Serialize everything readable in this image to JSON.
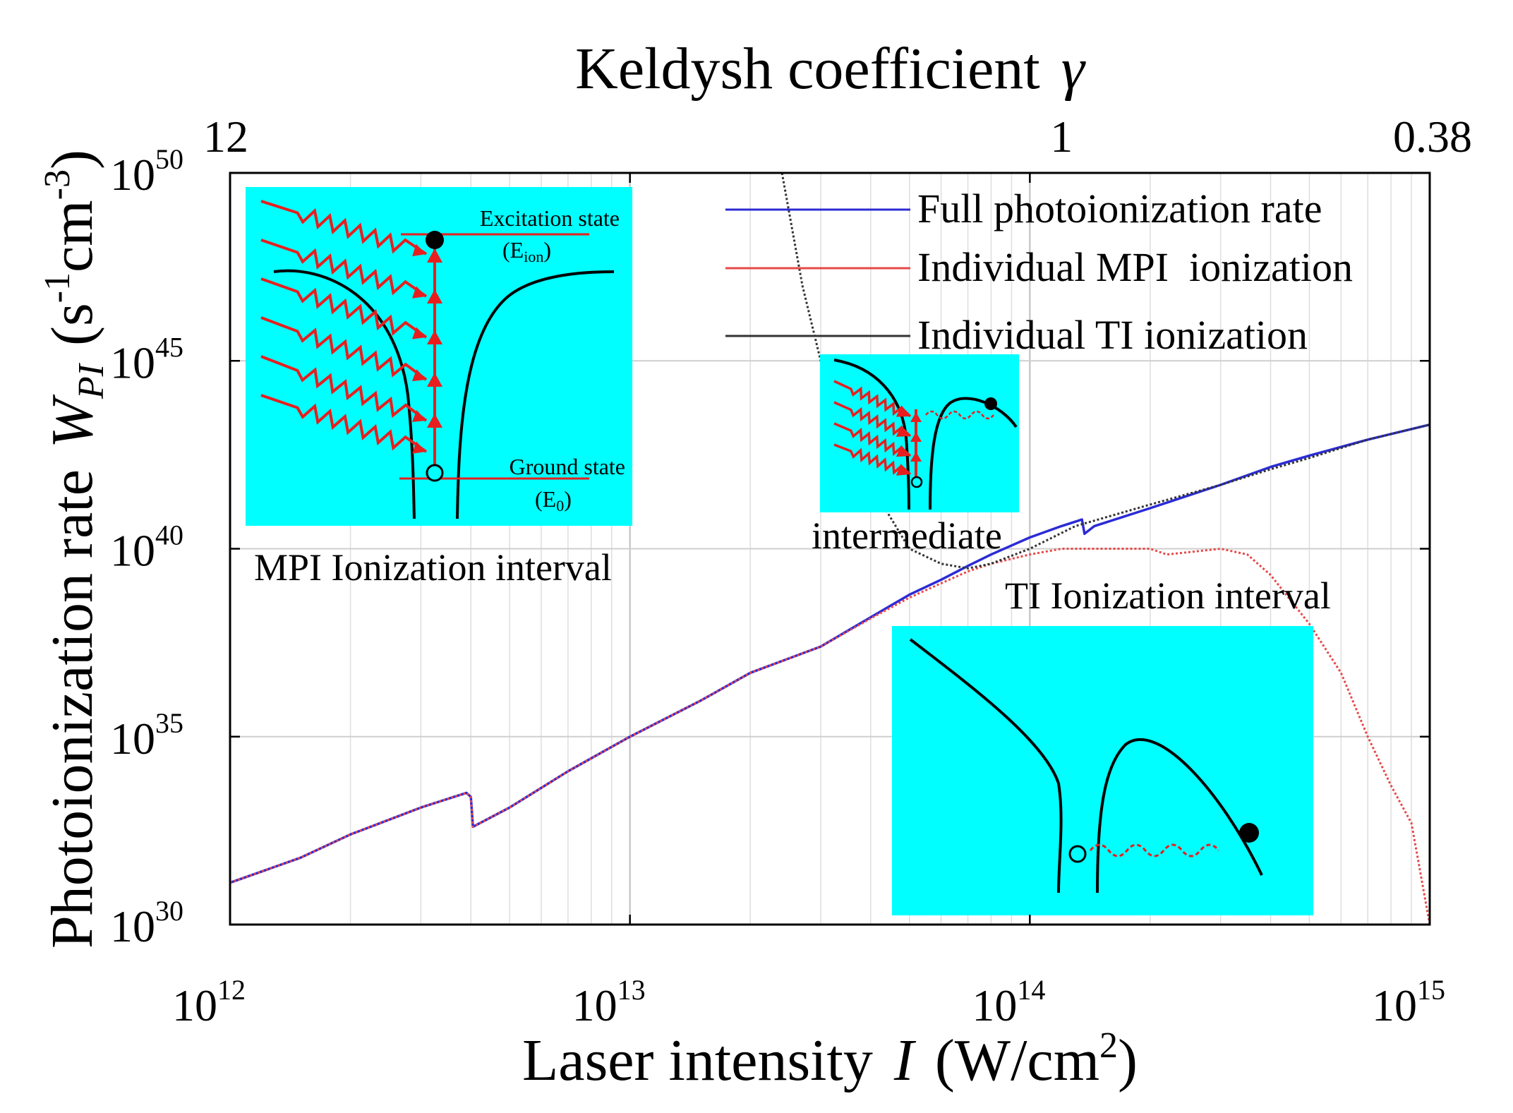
{
  "chart_data": {
    "type": "line",
    "xscale": "log",
    "yscale": "log",
    "xlim": [
      1000000000000.0,
      1000000000000000.0
    ],
    "ylim": [
      1e+30,
      1e+50
    ],
    "x_ticks": [
      {
        "base": "10",
        "exp": "12"
      },
      {
        "base": "10",
        "exp": "13"
      },
      {
        "base": "10",
        "exp": "14"
      },
      {
        "base": "10",
        "exp": "15"
      }
    ],
    "y_ticks": [
      {
        "base": "10",
        "exp": "30"
      },
      {
        "base": "10",
        "exp": "35"
      },
      {
        "base": "10",
        "exp": "40"
      },
      {
        "base": "10",
        "exp": "45"
      },
      {
        "base": "10",
        "exp": "50"
      }
    ],
    "top_axis": {
      "title": "Keldysh coefficient",
      "symbol": "γ",
      "ticks": [
        {
          "label": "12",
          "at_intensity": 1000000000000.0
        },
        {
          "label": "1",
          "at_intensity": 120000000000000.0
        },
        {
          "label": "0.38",
          "at_intensity": 1000000000000000.0
        }
      ]
    },
    "xlabel": {
      "text": "Laser intensity",
      "symbol": "I",
      "unit_pre": "(W/cm",
      "unit_sup": "2",
      "unit_post": ")"
    },
    "ylabel": {
      "text": "Photoionization rate",
      "symbol": "W",
      "symbol_sub": "PI",
      "unit_pre": "(s",
      "unit_sup1": "-1",
      "unit_mid": "cm",
      "unit_sup2": "-3",
      "unit_post": ")"
    },
    "legend_position": "top-right",
    "grid": true,
    "series": [
      {
        "name": "Full photoionization rate",
        "color": "#2b2bd6",
        "style": "solid",
        "x": [
          1000000000000.0,
          1500000000000.0,
          2000000000000.0,
          3000000000000.0,
          3900000000000.0,
          4000000000000.0,
          4050000000000.0,
          5000000000000.0,
          7000000000000.0,
          10000000000000.0,
          15000000000000.0,
          20000000000000.0,
          30000000000000.0,
          40000000000000.0,
          50000000000000.0,
          60000000000000.0,
          70000000000000.0,
          80000000000000.0,
          100000000000000.0,
          120000000000000.0,
          135000000000000.0,
          137000000000000.0,
          145000000000000.0,
          200000000000000.0,
          300000000000000.0,
          400000000000000.0,
          500000000000000.0,
          700000000000000.0,
          1000000000000000.0
        ],
        "y": [
          1.3e+31,
          6e+31,
          2.5e+32,
          1.3e+33,
          3.2e+33,
          2.5e+33,
          4e+32,
          1.3e+33,
          1.2e+34,
          1e+35,
          9e+35,
          5e+36,
          2.5e+37,
          1.5e+38,
          6e+38,
          1.5e+39,
          3.5e+39,
          7e+39,
          2e+40,
          4e+40,
          6e+40,
          2.5e+40,
          4e+40,
          1.2e+41,
          5e+41,
          1.5e+42,
          3e+42,
          8e+42,
          2e+43
        ]
      },
      {
        "name": "Individual MPI  ionization",
        "color": "#e84848",
        "style": "dotted",
        "x": [
          1000000000000.0,
          1500000000000.0,
          2000000000000.0,
          3000000000000.0,
          3900000000000.0,
          4000000000000.0,
          4050000000000.0,
          5000000000000.0,
          7000000000000.0,
          10000000000000.0,
          15000000000000.0,
          20000000000000.0,
          30000000000000.0,
          40000000000000.0,
          50000000000000.0,
          60000000000000.0,
          70000000000000.0,
          80000000000000.0,
          100000000000000.0,
          120000000000000.0,
          150000000000000.0,
          200000000000000.0,
          220000000000000.0,
          300000000000000.0,
          350000000000000.0,
          400000000000000.0,
          500000000000000.0,
          600000000000000.0,
          700000000000000.0,
          800000000000000.0,
          900000000000000.0,
          1000000000000000.0
        ],
        "y": [
          1.3e+31,
          6e+31,
          2.5e+32,
          1.3e+33,
          3.2e+33,
          2.5e+33,
          4e+32,
          1.3e+33,
          1.2e+34,
          1e+35,
          9e+35,
          5e+36,
          2.5e+37,
          1.4e+38,
          5e+38,
          1.2e+39,
          2.5e+39,
          4e+39,
          7e+39,
          1e+40,
          1e+40,
          1e+40,
          7e+39,
          1e+40,
          7e+39,
          2e+39,
          1e+38,
          5e+36,
          1e+35,
          5e+33,
          5e+32,
          1e+30
        ]
      },
      {
        "name": "Individual TI ionization",
        "color": "#333333",
        "style": "dotted",
        "x": [
          24000000000000.0,
          27000000000000.0,
          30000000000000.0,
          35000000000000.0,
          40000000000000.0,
          50000000000000.0,
          60000000000000.0,
          70000000000000.0,
          80000000000000.0,
          100000000000000.0,
          130000000000000.0,
          200000000000000.0,
          300000000000000.0,
          400000000000000.0,
          500000000000000.0,
          700000000000000.0,
          1000000000000000.0
        ],
        "y": [
          1e+50,
          1e+47,
          1e+45,
          1e+43,
          5e+41,
          1e+40,
          4e+39,
          3e+39,
          4e+39,
          1e+40,
          4e+40,
          1.5e+41,
          5e+41,
          1.3e+42,
          2.6e+42,
          8e+42,
          2e+43
        ]
      }
    ],
    "annotations": {
      "mpi": "MPI Ionization interval",
      "intermediate": "intermediate",
      "ti": "TI Ionization interval",
      "excitation_state": "Excitation state",
      "e_ion_base": "(E",
      "e_ion_sub": "ion",
      "e_ion_close": ")",
      "ground_state": "Ground state",
      "e0_base": "(E",
      "e0_sub": "0",
      "e0_close": ")"
    }
  },
  "colors": {
    "inset_background": "#00ffff",
    "photon": "#e81e1e",
    "potential": "#000000"
  }
}
